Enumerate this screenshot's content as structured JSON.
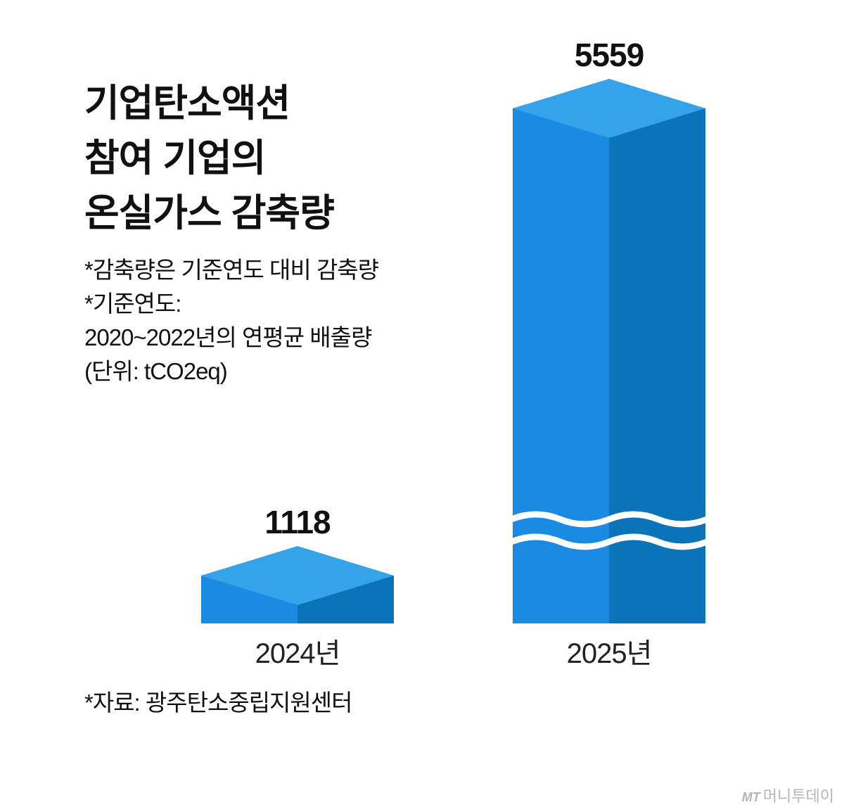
{
  "title_lines": [
    "기업탄소액션",
    "참여 기업의",
    "온실가스 감축량"
  ],
  "notes": [
    "*감축량은 기준연도 대비 감축량",
    "*기준연도:",
    "2020~2022년의 연평균 배출량",
    "(단위: tCO2eq)"
  ],
  "source": "*자료: 광주탄소중립지원센터",
  "logo": {
    "mark": "MT",
    "name": "머니투데이"
  },
  "colors": {
    "front": "#1a8ae2",
    "side": "#0b74b8",
    "top": "#34a3ea",
    "text": "#111111"
  },
  "chart_data": {
    "type": "bar",
    "categories": [
      "2024년",
      "2025년"
    ],
    "values": [
      1118,
      5559
    ],
    "value_labels": [
      "1118",
      "5559"
    ],
    "unit": "tCO2eq",
    "axis_break": true,
    "style": "3d-isometric"
  }
}
